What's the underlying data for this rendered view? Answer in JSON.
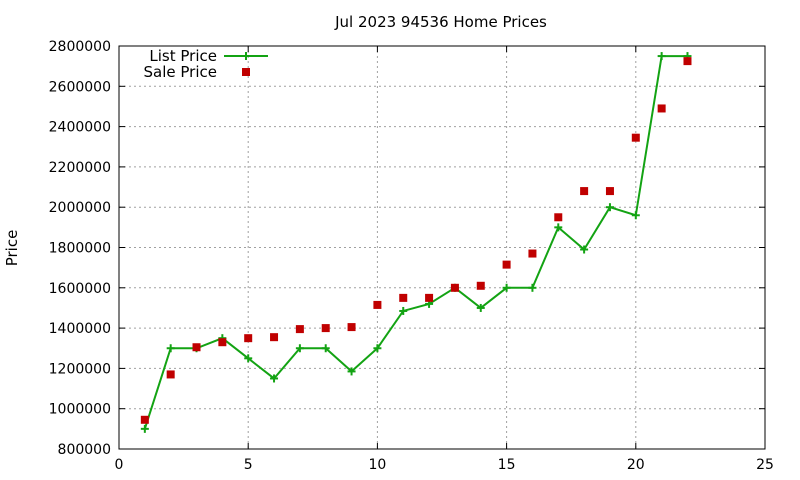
{
  "chart_data": {
    "type": "line",
    "title": "Jul 2023 94536 Home Prices",
    "xlabel": "",
    "ylabel": "Price",
    "xlim": [
      0,
      25
    ],
    "ylim": [
      800000,
      2800000
    ],
    "xticks": [
      0,
      5,
      10,
      15,
      20,
      25
    ],
    "yticks": [
      800000,
      1000000,
      1200000,
      1400000,
      1600000,
      1800000,
      2000000,
      2200000,
      2400000,
      2600000,
      2800000
    ],
    "grid": true,
    "legend_position": "top-left",
    "series": [
      {
        "name": "List Price",
        "style": "line-points",
        "marker": "plus",
        "color": "#13a313",
        "x": [
          1,
          2,
          3,
          4,
          5,
          6,
          7,
          8,
          9,
          10,
          11,
          12,
          13,
          14,
          15,
          16,
          17,
          18,
          19,
          20,
          21,
          22
        ],
        "y": [
          900000,
          1300000,
          1300000,
          1350000,
          1250000,
          1150000,
          1300000,
          1300000,
          1185000,
          1300000,
          1485000,
          1520000,
          1600000,
          1500000,
          1600000,
          1600000,
          1900000,
          1790000,
          2000000,
          1960000,
          2750000,
          2750000
        ]
      },
      {
        "name": "Sale Price",
        "style": "points",
        "marker": "square",
        "color": "#c00000",
        "x": [
          1,
          2,
          3,
          4,
          5,
          6,
          7,
          8,
          9,
          10,
          11,
          12,
          13,
          14,
          15,
          16,
          17,
          18,
          19,
          20,
          21,
          22
        ],
        "y": [
          945000,
          1170000,
          1305000,
          1330000,
          1350000,
          1355000,
          1395000,
          1400000,
          1405000,
          1515000,
          1550000,
          1550000,
          1600000,
          1610000,
          1715000,
          1770000,
          1950000,
          2080000,
          2080000,
          2345000,
          2490000,
          2725000
        ]
      }
    ]
  }
}
